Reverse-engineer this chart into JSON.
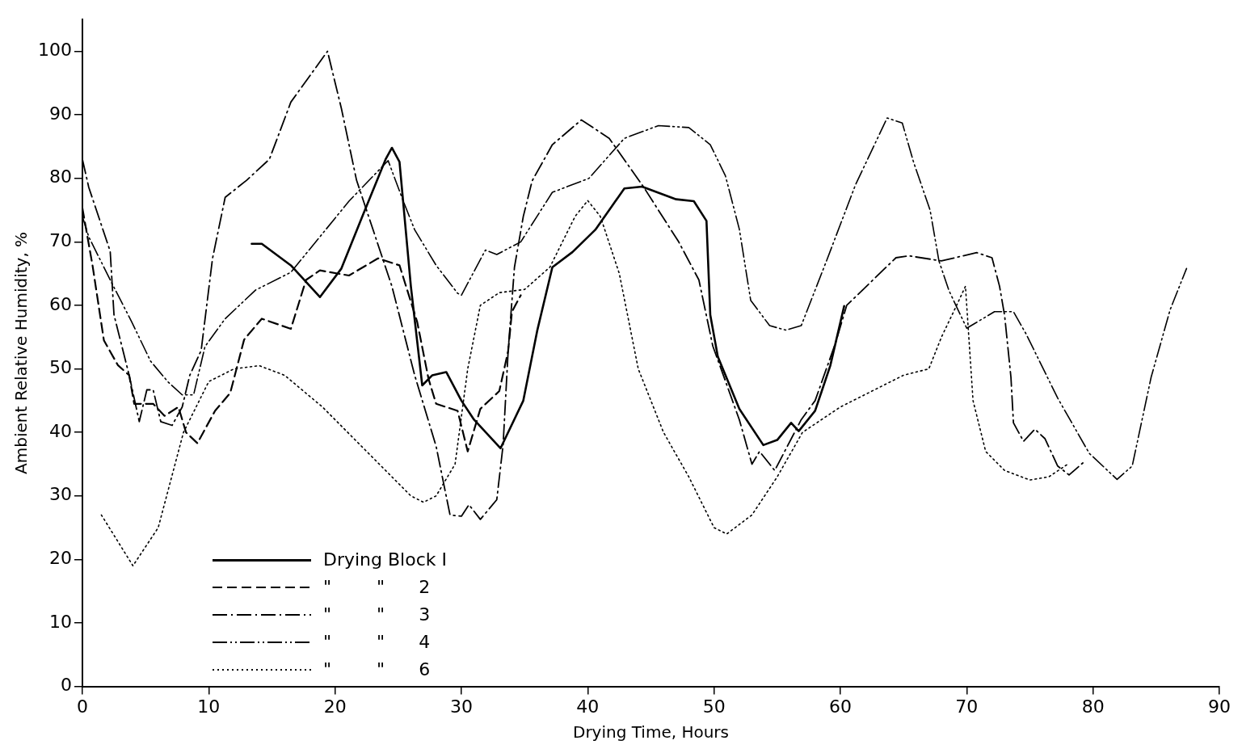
{
  "chart_data": {
    "type": "line",
    "xlabel": "Drying Time, Hours",
    "ylabel": "Ambient Relative Humidity, %",
    "xlim": [
      0,
      90
    ],
    "ylim": [
      0,
      105
    ],
    "xticks": [
      0,
      10,
      20,
      30,
      40,
      50,
      60,
      70,
      80,
      90
    ],
    "yticks": [
      0,
      10,
      20,
      30,
      40,
      50,
      60,
      70,
      80,
      90,
      100
    ],
    "grid": false,
    "legend": "bottom left",
    "series": [
      {
        "name": "Drying Block I",
        "color": "#000000",
        "line_style": "solid",
        "x": [
          13.4,
          14.2,
          16.5,
          18.8,
          20.5,
          22.2,
          24,
          24.5,
          25.1,
          26,
          26.9,
          27.7,
          28.8,
          30,
          31,
          33.1,
          34.9,
          36,
          37.2,
          38.8,
          40.6,
          42.9,
          44.3,
          47,
          48.4,
          49.4,
          49.7,
          50.3,
          52,
          53.9,
          55,
          56.1,
          56.7,
          58,
          59.2,
          60.3
        ],
        "values": [
          69.7,
          69.7,
          66.3,
          61.3,
          65.8,
          74.2,
          83,
          84.8,
          82.6,
          63,
          47.4,
          49,
          49.5,
          45,
          42,
          37.5,
          45,
          56,
          66,
          68.4,
          71.9,
          78.4,
          78.7,
          76.7,
          76.4,
          73.3,
          58.5,
          51.9,
          43.7,
          38,
          38.8,
          41.5,
          40.2,
          43.4,
          50.5,
          59.9
        ]
      },
      {
        "name": "\"        \"      2",
        "color": "#000000",
        "line_style": "dashed",
        "x": [
          0,
          0.8,
          1.7,
          2.8,
          3.7,
          4.1,
          5.6,
          6.5,
          7.6,
          8.2,
          9.1,
          10.5,
          11.7,
          12.8,
          14.2,
          16.5,
          17.7,
          18.8,
          21.1,
          23.4,
          25.1,
          26.5,
          27.4,
          28,
          29.7,
          30.5,
          31.5,
          33,
          33.7,
          34,
          34.7
        ],
        "values": [
          75.3,
          66.3,
          54.5,
          50.6,
          49,
          44.5,
          44.5,
          42.6,
          44,
          40,
          38.3,
          43.4,
          46.2,
          54.6,
          57.9,
          56.3,
          64,
          65.5,
          64.7,
          67.4,
          66.3,
          57.4,
          48.4,
          44.5,
          43.4,
          37,
          43.7,
          46.5,
          52.8,
          59,
          61.6
        ]
      },
      {
        "name": "\"        \"      3",
        "color": "#000000",
        "line_style": "dashdot",
        "x": [
          0,
          0.5,
          2.2,
          2.5,
          3.7,
          4.5,
          5.1,
          5.6,
          6.2,
          7.1,
          7.9,
          8.5,
          9.4,
          10.3,
          11.3,
          13,
          14.8,
          16.5,
          19.4,
          20.5,
          21.7,
          24.5,
          26.3,
          28,
          29.1,
          30,
          30.6,
          31.5,
          32.8,
          33.3,
          33.7,
          34.2,
          34.9,
          35.6,
          37.2,
          39.5,
          41.7,
          44.4,
          47.2,
          48.8,
          49.9,
          52,
          53,
          53.6,
          54.8,
          56.9,
          58,
          59.6,
          60.5,
          64.4,
          65.4,
          68,
          70.8,
          72,
          72.6,
          73,
          73.5,
          73.7,
          74.5,
          75.4,
          76.2,
          77.2,
          78.1,
          79.2
        ],
        "values": [
          83,
          78.6,
          68.5,
          58.5,
          49,
          41.7,
          46.7,
          46.7,
          41.7,
          41.1,
          44,
          49,
          52.9,
          67.4,
          77,
          79.7,
          83,
          92,
          100,
          91,
          79.7,
          63,
          49,
          37.8,
          27,
          26.8,
          28.6,
          26.3,
          29.4,
          38,
          52.8,
          66,
          74,
          79.6,
          85.3,
          89.2,
          86.3,
          78.7,
          70,
          64,
          53.6,
          42,
          35,
          37,
          34,
          42,
          45,
          54,
          60,
          67.5,
          67.8,
          67,
          68.3,
          67.5,
          63,
          58.4,
          48.7,
          41.5,
          38.6,
          40.5,
          39,
          34.7,
          33.3,
          35.2
        ]
      },
      {
        "name": "\"        \"      4",
        "color": "#000000",
        "line_style": "dashdotdot",
        "x": [
          0,
          0.5,
          2.2,
          3.9,
          5.4,
          6.8,
          7.9,
          8.8,
          9.7,
          11.3,
          13.7,
          16.5,
          18.8,
          21.1,
          24.2,
          25.4,
          26.3,
          28,
          29.7,
          30,
          31.9,
          32.8,
          34.7,
          37.2,
          40.1,
          42.9,
          45.6,
          48,
          49.7,
          50.9,
          52,
          52.9,
          54.4,
          55.7,
          56.9,
          58.9,
          61.2,
          63.7,
          64.9,
          65.8,
          67.1,
          67.8,
          68.6,
          70,
          72.2,
          73.7,
          74.7,
          77.2,
          79.7,
          81.9,
          83.1,
          84.6,
          86.1,
          87.4
        ],
        "values": [
          74,
          70.8,
          64,
          57.4,
          51.2,
          47.9,
          45.9,
          45.9,
          53.5,
          57.9,
          62.4,
          65.2,
          70.8,
          76.4,
          82.8,
          76.4,
          71.9,
          66.3,
          61.9,
          61.6,
          68.7,
          68,
          70,
          77.8,
          80,
          86.3,
          88.3,
          88,
          85.3,
          80.4,
          72,
          60.8,
          56.8,
          56.1,
          56.8,
          67,
          79,
          89.5,
          88.7,
          82.5,
          75,
          67,
          62.3,
          56.4,
          59,
          59,
          55.5,
          45.4,
          36.7,
          32.6,
          34.7,
          48.7,
          59.3,
          65.8
        ]
      },
      {
        "name": "\"        \"      6",
        "color": "#000000",
        "line_style": "dotted",
        "x": [
          1.5,
          4,
          6,
          8,
          10,
          12,
          14,
          16,
          19,
          22,
          24.5,
          26,
          27,
          28,
          29.5,
          30.5,
          31.5,
          33,
          35,
          37,
          39,
          40,
          41,
          42.5,
          44,
          46,
          48,
          50,
          51,
          53,
          55,
          57,
          60,
          63,
          65,
          67,
          68,
          69.2,
          69.9,
          70.5,
          71.5,
          73,
          75,
          76.5,
          78
        ],
        "values": [
          27,
          19,
          25,
          40,
          48,
          50,
          50.5,
          49,
          44,
          38,
          33,
          30,
          29,
          30,
          35,
          50,
          60,
          62,
          62.5,
          66,
          74,
          76.5,
          74,
          65,
          50,
          40,
          33,
          25,
          24,
          27,
          33,
          40,
          44,
          47,
          49,
          50,
          55,
          60,
          63,
          45,
          37,
          34,
          32.5,
          33,
          35
        ]
      }
    ]
  }
}
